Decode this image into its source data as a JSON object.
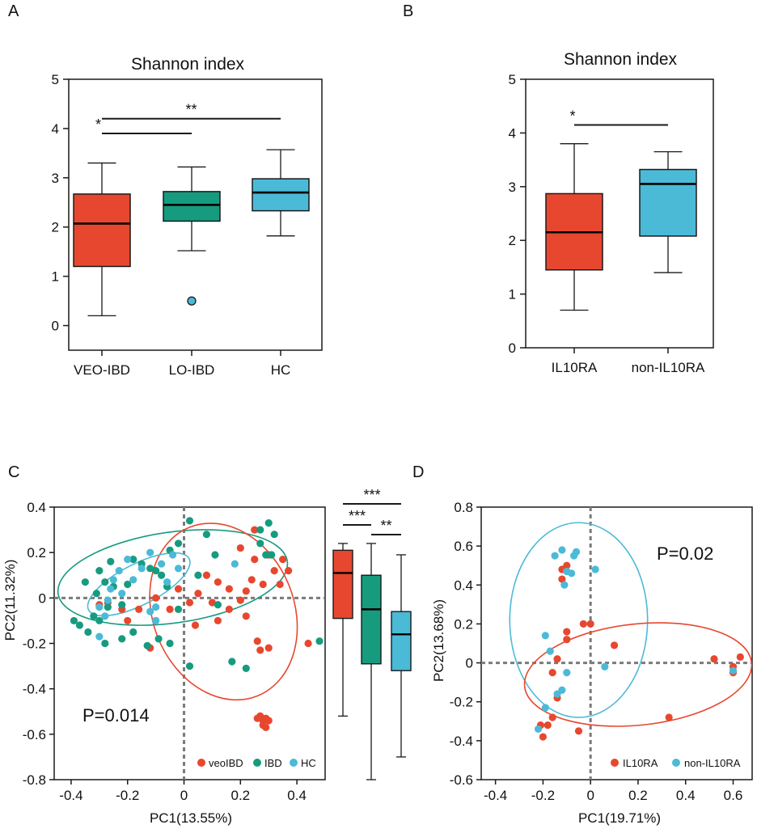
{
  "colors": {
    "veo": "#e8472f",
    "lo": "#169b7f",
    "hc": "#4bbad7",
    "axis": "#1a1a1a",
    "dash": "#7a7a7a"
  },
  "chart_data": [
    {
      "panel": "A",
      "type": "box",
      "title": "Shannon index",
      "ylim": [
        -0.5,
        5
      ],
      "yticks": [
        "0",
        "1",
        "2",
        "3",
        "4",
        "5"
      ],
      "categories": [
        "VEO-IBD",
        "LO-IBD",
        "HC"
      ],
      "boxes": [
        {
          "category": "VEO-IBD",
          "color_key": "veo",
          "min": 0.2,
          "q1": 1.2,
          "median": 2.07,
          "q3": 2.67,
          "max": 3.3,
          "outliers": []
        },
        {
          "category": "LO-IBD",
          "color_key": "lo",
          "min": 1.52,
          "q1": 2.12,
          "median": 2.45,
          "q3": 2.72,
          "max": 3.22,
          "outliers": [
            0.5
          ]
        },
        {
          "category": "HC",
          "color_key": "hc",
          "min": 1.82,
          "q1": 2.33,
          "median": 2.7,
          "q3": 2.98,
          "max": 3.57,
          "outliers": []
        }
      ],
      "significance": [
        {
          "from": "VEO-IBD",
          "to": "LO-IBD",
          "y": 3.9,
          "label": "*"
        },
        {
          "from": "VEO-IBD",
          "to": "HC",
          "y": 4.2,
          "label": "**"
        }
      ]
    },
    {
      "panel": "B",
      "type": "box",
      "title": "Shannon index",
      "ylim": [
        0,
        5
      ],
      "yticks": [
        "0",
        "1",
        "2",
        "3",
        "4",
        "5"
      ],
      "categories": [
        "IL10RA",
        "non-IL10RA"
      ],
      "boxes": [
        {
          "category": "IL10RA",
          "color_key": "veo",
          "min": 0.7,
          "q1": 1.45,
          "median": 2.15,
          "q3": 2.87,
          "max": 3.8,
          "outliers": []
        },
        {
          "category": "non-IL10RA",
          "color_key": "hc",
          "min": 1.4,
          "q1": 2.08,
          "median": 3.05,
          "q3": 3.32,
          "max": 3.65,
          "outliers": []
        }
      ],
      "significance": [
        {
          "from": "IL10RA",
          "to": "non-IL10RA",
          "y": 4.15,
          "label": "*"
        }
      ]
    },
    {
      "panel": "C",
      "type": "scatter",
      "xlabel": "PC1(13.55%)",
      "ylabel": "PC2(11.32%)",
      "xlim": [
        -0.46,
        0.5
      ],
      "ylim": [
        -0.8,
        0.4
      ],
      "xticks": [
        "-0.4",
        "-0.2",
        "0",
        "0.2",
        "0.4"
      ],
      "yticks": [
        "-0.8",
        "-0.6",
        "-0.4",
        "-0.2",
        "0",
        "0.2",
        "0.4"
      ],
      "p_value": "P=0.014",
      "legend": [
        "veoIBD",
        "IBD",
        "HC"
      ],
      "series": [
        {
          "name": "veoIBD",
          "color_key": "veo",
          "points": [
            [
              0.28,
              -0.56
            ],
            [
              0.29,
              -0.53
            ],
            [
              0.3,
              -0.54
            ],
            [
              0.27,
              -0.52
            ],
            [
              0.28,
              -0.54
            ],
            [
              0.26,
              -0.53
            ],
            [
              0.29,
              -0.57
            ],
            [
              0.44,
              -0.2
            ],
            [
              0.27,
              -0.23
            ],
            [
              0.3,
              -0.22
            ],
            [
              0.26,
              -0.19
            ],
            [
              0.2,
              0.22
            ],
            [
              0.25,
              0.17
            ],
            [
              0.3,
              0.19
            ],
            [
              0.32,
              0.12
            ],
            [
              0.37,
              0.12
            ],
            [
              0.34,
              0.06
            ],
            [
              0.28,
              0.06
            ],
            [
              0.24,
              0.08
            ],
            [
              0.22,
              0.03
            ],
            [
              0.2,
              -0.01
            ],
            [
              0.16,
              0.04
            ],
            [
              0.12,
              0.07
            ],
            [
              0.08,
              0.1
            ],
            [
              0.05,
              0.02
            ],
            [
              -0.02,
              0.04
            ],
            [
              0.02,
              -0.02
            ],
            [
              0.1,
              -0.02
            ],
            [
              0.16,
              -0.05
            ],
            [
              0.22,
              -0.08
            ],
            [
              0.12,
              -0.1
            ],
            [
              0.04,
              -0.12
            ],
            [
              -0.05,
              -0.05
            ],
            [
              -0.1,
              0.0
            ],
            [
              -0.16,
              -0.05
            ],
            [
              -0.22,
              -0.05
            ],
            [
              -0.27,
              -0.02
            ],
            [
              -0.3,
              -0.03
            ],
            [
              -0.2,
              -0.1
            ],
            [
              -0.12,
              -0.22
            ],
            [
              0.25,
              0.3
            ],
            [
              0.35,
              0.17
            ]
          ]
        },
        {
          "name": "IBD",
          "color_key": "lo",
          "points": [
            [
              0.3,
              0.33
            ],
            [
              0.27,
              0.3
            ],
            [
              0.32,
              0.28
            ],
            [
              0.27,
              0.24
            ],
            [
              0.29,
              0.19
            ],
            [
              0.31,
              0.19
            ],
            [
              0.02,
              0.34
            ],
            [
              -0.02,
              0.24
            ],
            [
              -0.05,
              0.21
            ],
            [
              0.08,
              0.28
            ],
            [
              0.11,
              0.19
            ],
            [
              -0.1,
              0.12
            ],
            [
              -0.15,
              0.15
            ],
            [
              -0.26,
              0.16
            ],
            [
              -0.3,
              0.12
            ],
            [
              -0.31,
              0.02
            ],
            [
              -0.35,
              0.07
            ],
            [
              -0.28,
              0.07
            ],
            [
              -0.32,
              -0.08
            ],
            [
              -0.37,
              -0.12
            ],
            [
              -0.39,
              -0.1
            ],
            [
              -0.34,
              -0.15
            ],
            [
              -0.3,
              -0.1
            ],
            [
              -0.27,
              -0.04
            ],
            [
              -0.22,
              -0.03
            ],
            [
              -0.25,
              0.05
            ],
            [
              -0.2,
              0.06
            ],
            [
              -0.18,
              0.17
            ],
            [
              -0.12,
              0.13
            ],
            [
              -0.08,
              0.1
            ],
            [
              -0.06,
              0.05
            ],
            [
              -0.02,
              -0.05
            ],
            [
              -0.1,
              -0.1
            ],
            [
              -0.18,
              -0.15
            ],
            [
              -0.22,
              -0.18
            ],
            [
              -0.28,
              -0.2
            ],
            [
              -0.13,
              -0.21
            ],
            [
              -0.09,
              -0.18
            ],
            [
              0.02,
              -0.3
            ],
            [
              0.17,
              -0.28
            ],
            [
              0.22,
              -0.31
            ],
            [
              0.48,
              -0.19
            ],
            [
              0.12,
              -0.03
            ],
            [
              0.05,
              0.1
            ],
            [
              -0.05,
              -0.2
            ]
          ]
        },
        {
          "name": "HC",
          "color_key": "hc",
          "points": [
            [
              -0.3,
              -0.04
            ],
            [
              -0.28,
              -0.08
            ],
            [
              -0.26,
              0.04
            ],
            [
              -0.23,
              0.12
            ],
            [
              -0.2,
              0.17
            ],
            [
              -0.15,
              0.13
            ],
            [
              -0.12,
              0.2
            ],
            [
              -0.08,
              0.15
            ],
            [
              -0.04,
              0.19
            ],
            [
              -0.02,
              0.13
            ],
            [
              -0.06,
              0.07
            ],
            [
              -0.1,
              -0.04
            ],
            [
              -0.12,
              -0.06
            ],
            [
              -0.18,
              0.08
            ],
            [
              -0.22,
              0.02
            ],
            [
              -0.25,
              0.08
            ],
            [
              -0.27,
              -0.01
            ],
            [
              0.18,
              0.15
            ],
            [
              -0.3,
              -0.17
            ],
            [
              -0.1,
              -0.1
            ]
          ]
        }
      ],
      "ellipses": [
        {
          "color_key": "lo",
          "cx": -0.04,
          "cy": 0.09,
          "rx": 0.41,
          "ry": 0.2,
          "angle": 8
        },
        {
          "color_key": "veo",
          "cx": 0.14,
          "cy": -0.06,
          "rx": 0.25,
          "ry": 0.4,
          "angle": 22
        },
        {
          "color_key": "hc",
          "cx": -0.16,
          "cy": 0.06,
          "rx": 0.2,
          "ry": 0.09,
          "angle": 27
        }
      ],
      "side_boxes": {
        "ylim": [
          -0.8,
          0.4
        ],
        "boxes": [
          {
            "name": "veoIBD",
            "color_key": "veo",
            "min": -0.52,
            "q1": -0.09,
            "median": 0.11,
            "q3": 0.21,
            "max": 0.24
          },
          {
            "name": "IBD",
            "color_key": "lo",
            "min": -0.8,
            "q1": -0.29,
            "median": -0.05,
            "q3": 0.1,
            "max": 0.24
          },
          {
            "name": "HC",
            "color_key": "hc",
            "min": -0.7,
            "q1": -0.32,
            "median": -0.16,
            "q3": -0.06,
            "max": 0.19
          }
        ],
        "significance": [
          {
            "from": 0,
            "to": 2,
            "level": 0,
            "label": "***"
          },
          {
            "from": 0,
            "to": 1,
            "level": 1,
            "label": "***"
          },
          {
            "from": 1,
            "to": 2,
            "level": 2,
            "label": "**"
          }
        ]
      }
    },
    {
      "panel": "D",
      "type": "scatter",
      "xlabel": "PC1(19.71%)",
      "ylabel": "PC2(13.68%)",
      "xlim": [
        -0.46,
        0.68
      ],
      "ylim": [
        -0.6,
        0.8
      ],
      "xticks": [
        "-0.4",
        "-0.2",
        "0",
        "0.2",
        "0.4",
        "0.6"
      ],
      "yticks": [
        "-0.6",
        "-0.4",
        "-0.2",
        "0",
        "0.2",
        "0.4",
        "0.6",
        "0.8"
      ],
      "p_value": "P=0.02",
      "legend": [
        "IL10RA",
        "non-IL10RA"
      ],
      "series": [
        {
          "name": "IL10RA",
          "color_key": "veo",
          "points": [
            [
              -0.21,
              -0.32
            ],
            [
              -0.18,
              -0.32
            ],
            [
              -0.2,
              -0.38
            ],
            [
              -0.05,
              -0.35
            ],
            [
              -0.14,
              -0.18
            ],
            [
              -0.16,
              -0.05
            ],
            [
              -0.14,
              0.02
            ],
            [
              -0.1,
              0.12
            ],
            [
              -0.1,
              0.16
            ],
            [
              -0.12,
              0.48
            ],
            [
              -0.12,
              0.43
            ],
            [
              -0.1,
              0.5
            ],
            [
              -0.03,
              0.2
            ],
            [
              0.1,
              0.09
            ],
            [
              0.33,
              -0.28
            ],
            [
              0.52,
              0.02
            ],
            [
              0.6,
              -0.02
            ],
            [
              0.63,
              0.03
            ],
            [
              0.6,
              -0.05
            ],
            [
              -0.16,
              -0.28
            ],
            [
              0.0,
              0.2
            ]
          ]
        },
        {
          "name": "non-IL10RA",
          "color_key": "hc",
          "points": [
            [
              -0.07,
              0.55
            ],
            [
              -0.06,
              0.57
            ],
            [
              -0.12,
              0.58
            ],
            [
              -0.15,
              0.55
            ],
            [
              0.02,
              0.48
            ],
            [
              -0.08,
              0.46
            ],
            [
              -0.11,
              0.4
            ],
            [
              -0.1,
              0.47
            ],
            [
              -0.19,
              0.14
            ],
            [
              -0.17,
              0.06
            ],
            [
              -0.1,
              -0.05
            ],
            [
              -0.14,
              -0.16
            ],
            [
              -0.12,
              -0.14
            ],
            [
              -0.19,
              -0.23
            ],
            [
              -0.22,
              -0.34
            ],
            [
              0.06,
              -0.02
            ],
            [
              0.6,
              -0.04
            ]
          ]
        }
      ],
      "ellipses": [
        {
          "color_key": "hc",
          "cx": -0.05,
          "cy": 0.22,
          "rx": 0.29,
          "ry": 0.5,
          "angle": 0
        },
        {
          "color_key": "veo",
          "cx": 0.2,
          "cy": -0.06,
          "rx": 0.48,
          "ry": 0.26,
          "angle": 6
        }
      ]
    }
  ]
}
